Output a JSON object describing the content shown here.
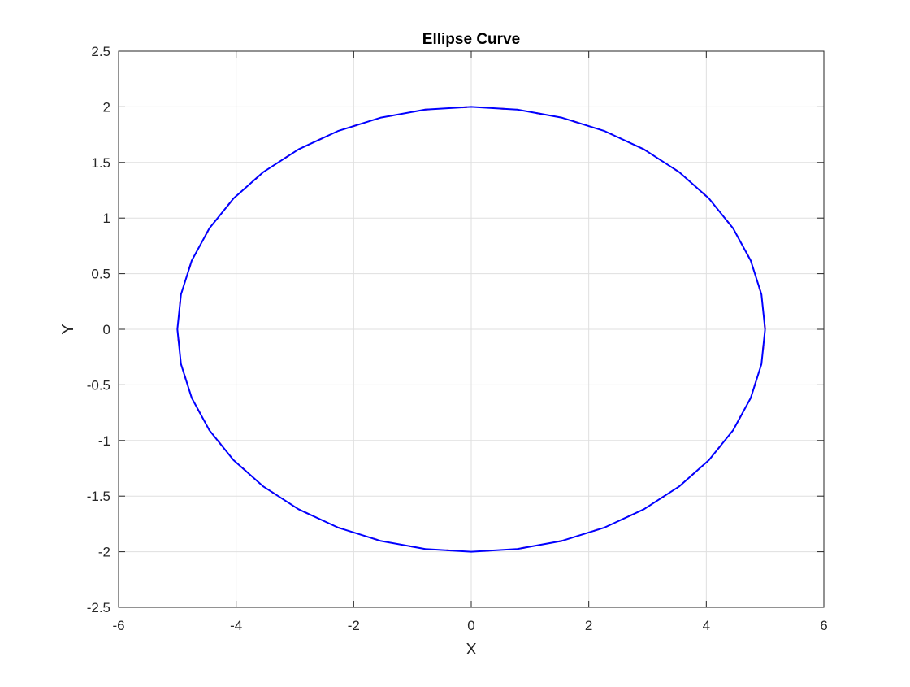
{
  "chart_data": {
    "type": "line",
    "title": "Ellipse Curve",
    "xlabel": "X",
    "ylabel": "Y",
    "xlim": [
      -6,
      6
    ],
    "ylim": [
      -2.5,
      2.5
    ],
    "xticks": [
      -6,
      -4,
      -2,
      0,
      2,
      4,
      6
    ],
    "xtick_labels": [
      "-6",
      "-4",
      "-2",
      "0",
      "2",
      "4",
      "6"
    ],
    "yticks": [
      -2.5,
      -2,
      -1.5,
      -1,
      -0.5,
      0,
      0.5,
      1,
      1.5,
      2,
      2.5
    ],
    "ytick_labels": [
      "-2.5",
      "-2",
      "-1.5",
      "-1",
      "-0.5",
      "0",
      "0.5",
      "1",
      "1.5",
      "2",
      "2.5"
    ],
    "grid": true,
    "series": [
      {
        "color": "#ff0000",
        "line_style": "dashed",
        "x": [
          5,
          4.9384,
          4.7553,
          4.455,
          4.0451,
          3.5355,
          2.9389,
          2.27,
          1.5451,
          0.7822,
          0,
          -0.7822,
          -1.5451,
          -2.27,
          -2.9389,
          -3.5355,
          -4.0451,
          -4.455,
          -4.7553,
          -4.9384,
          -5,
          -4.9384,
          -4.7553,
          -4.455,
          -4.0451,
          -3.5355,
          -2.9389,
          -2.27,
          -1.5451,
          -0.7822,
          0,
          0.7822,
          1.5451,
          2.27,
          2.9389,
          3.5355,
          4.0451,
          4.455,
          4.7553,
          4.9384,
          5
        ],
        "y": [
          0,
          0.3129,
          0.618,
          0.908,
          1.1756,
          1.4142,
          1.618,
          1.782,
          1.9021,
          1.9754,
          2,
          1.9754,
          1.9021,
          1.782,
          1.618,
          1.4142,
          1.1756,
          0.908,
          0.618,
          0.3129,
          0,
          -0.3129,
          -0.618,
          -0.908,
          -1.1756,
          -1.4142,
          -1.618,
          -1.782,
          -1.9021,
          -1.9754,
          -2,
          -1.9754,
          -1.9021,
          -1.782,
          -1.618,
          -1.4142,
          -1.1756,
          -0.908,
          -0.618,
          -0.3129,
          0
        ]
      },
      {
        "color": "#0000ff",
        "line_style": "solid",
        "x": [
          5,
          4.9384,
          4.7553,
          4.455,
          4.0451,
          3.5355,
          2.9389,
          2.27,
          1.5451,
          0.7822,
          0,
          -0.7822,
          -1.5451,
          -2.27,
          -2.9389,
          -3.5355,
          -4.0451,
          -4.455,
          -4.7553,
          -4.9384,
          -5,
          -4.9384,
          -4.7553,
          -4.455,
          -4.0451,
          -3.5355,
          -2.9389,
          -2.27,
          -1.5451,
          -0.7822,
          0,
          0.7822,
          1.5451,
          2.27,
          2.9389,
          3.5355,
          4.0451,
          4.455,
          4.7553,
          4.9384,
          5
        ],
        "y": [
          0,
          0.3129,
          0.618,
          0.908,
          1.1756,
          1.4142,
          1.618,
          1.782,
          1.9021,
          1.9754,
          2,
          1.9754,
          1.9021,
          1.782,
          1.618,
          1.4142,
          1.1756,
          0.908,
          0.618,
          0.3129,
          0,
          -0.3129,
          -0.618,
          -0.908,
          -1.1756,
          -1.4142,
          -1.618,
          -1.782,
          -1.9021,
          -1.9754,
          -2,
          -1.9754,
          -1.9021,
          -1.782,
          -1.618,
          -1.4142,
          -1.1756,
          -0.908,
          -0.618,
          -0.3129,
          0
        ]
      }
    ]
  }
}
